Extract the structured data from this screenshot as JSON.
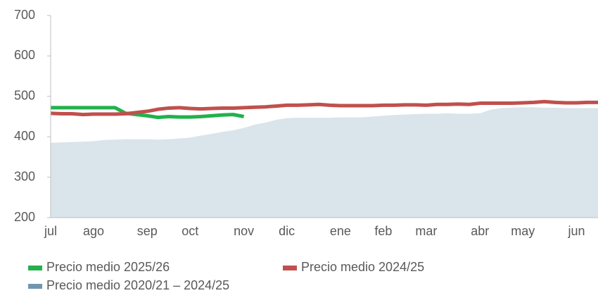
{
  "chart_data": {
    "type": "line",
    "categories": [
      "jul",
      null,
      null,
      null,
      "ago",
      null,
      null,
      null,
      null,
      "sep",
      null,
      null,
      null,
      "oct",
      null,
      null,
      null,
      null,
      "nov",
      null,
      null,
      null,
      "dic",
      null,
      null,
      null,
      null,
      "ene",
      null,
      null,
      null,
      "feb",
      null,
      null,
      null,
      "mar",
      null,
      null,
      null,
      null,
      "abr",
      null,
      null,
      null,
      "may",
      null,
      null,
      null,
      null,
      "jun",
      null,
      null
    ],
    "series": [
      {
        "name": "Precio medio 2025/26",
        "color": "#22b14c",
        "values": [
          472,
          472,
          472,
          472,
          472,
          472,
          472,
          458,
          455,
          452,
          448,
          450,
          449,
          449,
          450,
          452,
          454,
          455,
          450,
          null,
          null,
          null,
          null,
          null,
          null,
          null,
          null,
          null,
          null,
          null,
          null,
          null,
          null,
          null,
          null,
          null,
          null,
          null,
          null,
          null,
          null,
          null,
          null,
          null,
          null,
          null,
          null,
          null,
          null,
          null,
          null,
          null
        ]
      },
      {
        "name": "Precio medio 2024/25",
        "color": "#c0504d",
        "values": [
          458,
          457,
          457,
          455,
          456,
          456,
          456,
          457,
          460,
          463,
          468,
          471,
          472,
          470,
          469,
          470,
          471,
          471,
          472,
          473,
          474,
          476,
          478,
          478,
          479,
          480,
          478,
          477,
          477,
          477,
          477,
          478,
          478,
          479,
          479,
          478,
          480,
          480,
          481,
          480,
          483,
          483,
          483,
          483,
          484,
          485,
          487,
          485,
          484,
          484,
          485,
          485
        ]
      },
      {
        "name": "Precio medio 2020/21 – 2024/25",
        "color": "#7096b0",
        "type": "area",
        "values": [
          385,
          386,
          387,
          388,
          389,
          392,
          393,
          394,
          394,
          394,
          393,
          394,
          396,
          398,
          403,
          407,
          412,
          416,
          422,
          430,
          435,
          442,
          446,
          447,
          447,
          447,
          447,
          448,
          448,
          448,
          450,
          452,
          454,
          455,
          456,
          457,
          457,
          458,
          457,
          457,
          458,
          467,
          471,
          472,
          473,
          473,
          472,
          472,
          471,
          471,
          471,
          471
        ]
      }
    ],
    "ylim": [
      200,
      700
    ],
    "yticks": [
      200,
      300,
      400,
      500,
      600,
      700
    ],
    "legend": "bottom"
  }
}
